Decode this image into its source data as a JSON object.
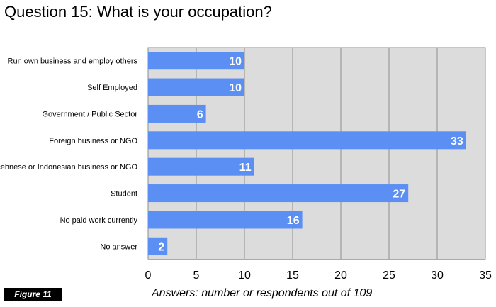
{
  "page_title": "Question 15: What is your occupation?",
  "figure_label": "Figure 11",
  "colors": {
    "bar": "#5b8ff3",
    "bar_label": "#ffffff",
    "plot_background": "#dcdcdc",
    "grid": "#8e8e8e",
    "figure_badge_bg": "#000000",
    "figure_badge_text": "#ffffff"
  },
  "chart_data": {
    "type": "bar",
    "orientation": "horizontal",
    "title": "Question 15: What is your occupation?",
    "xlabel": "Answers: number or respondents out of 109",
    "ylabel": "",
    "xlim": [
      0,
      35
    ],
    "x_ticks": [
      0,
      5,
      10,
      15,
      20,
      25,
      30,
      35
    ],
    "grid": true,
    "categories": [
      "Run own business and employ others",
      "Self Employed",
      "Government / Public Sector",
      "Foreign business or NGO",
      "Acehnese or Indonesian business or NGO",
      "Student",
      "No paid work currently",
      "No answer"
    ],
    "values": [
      10,
      10,
      6,
      33,
      11,
      27,
      16,
      2
    ]
  }
}
